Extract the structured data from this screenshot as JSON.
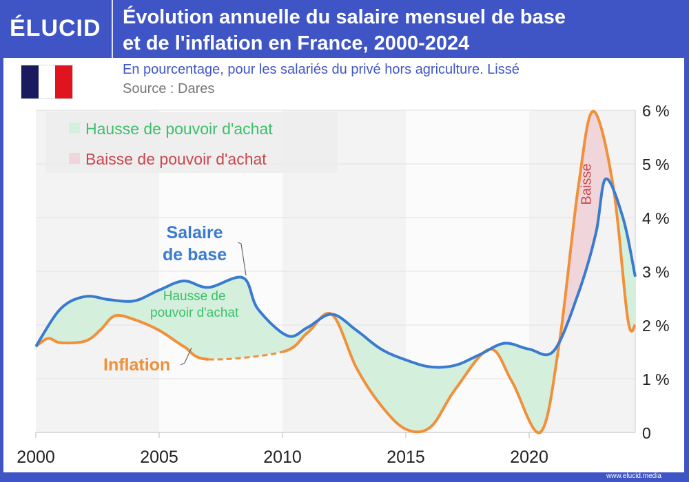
{
  "header": {
    "logo": "ÉLUCID",
    "title_line1": "Évolution annuelle du salaire mensuel de base",
    "title_line2": "et de l'inflation en France, 2000-2024",
    "subtitle": "En pourcentage, pour les salariés du privé hors agriculture. Lissé",
    "source": "Source : Dares"
  },
  "footer": {
    "url": "www.elucid.media"
  },
  "colors": {
    "brand": "#3f55c6",
    "salary": "#3a7bd0",
    "inflation": "#f0903a",
    "gain_fill": "#d5efdd",
    "loss_fill": "#f0d6da",
    "gain_text": "#3cbf6a",
    "loss_text": "#c9474f"
  },
  "chart_data": {
    "type": "line",
    "title": "Évolution annuelle du salaire mensuel de base et de l'inflation en France, 2000-2024",
    "xlim": [
      2000,
      2024.3
    ],
    "ylim": [
      0,
      6
    ],
    "x_ticks": [
      "2000",
      "2005",
      "2010",
      "2015",
      "2020"
    ],
    "y_ticks": [
      "0",
      "1 %",
      "2 %",
      "3 %",
      "4 %",
      "5 %",
      "6 %"
    ],
    "legend": [
      {
        "label": "Hausse de pouvoir d'achat",
        "kind": "gain"
      },
      {
        "label": "Baisse de pouvoir d'achat",
        "kind": "loss"
      }
    ],
    "annotations": {
      "salary": [
        "Salaire",
        "de base"
      ],
      "gain": [
        "Hausse de",
        "pouvoir d'achat"
      ],
      "inflation": "Inflation",
      "loss": "Baisse"
    },
    "series": [
      {
        "name": "Salaire de base",
        "x": [
          2000,
          2001,
          2002,
          2003,
          2004,
          2005,
          2006,
          2007,
          2008.4,
          2009,
          2010.2,
          2011,
          2012,
          2013,
          2014,
          2015,
          2016,
          2017,
          2018,
          2019,
          2020,
          2021,
          2022,
          2022.7,
          2023.1,
          2023.8,
          2024.3
        ],
        "y": [
          1.6,
          2.3,
          2.53,
          2.47,
          2.45,
          2.65,
          2.82,
          2.7,
          2.88,
          2.3,
          1.8,
          1.95,
          2.2,
          1.9,
          1.55,
          1.35,
          1.22,
          1.25,
          1.45,
          1.66,
          1.55,
          1.52,
          2.6,
          3.7,
          4.72,
          4.0,
          2.9
        ]
      },
      {
        "name": "Inflation",
        "x": [
          2000,
          2000.5,
          2001,
          2002,
          2002.6,
          2003.2,
          2004,
          2005,
          2006,
          2007,
          2010,
          2011,
          2012,
          2013,
          2014,
          2015,
          2016,
          2017,
          2018.4,
          2019.3,
          2020.45,
          2021.2,
          2022,
          2022.6,
          2023.4,
          2024,
          2024.3
        ],
        "y": [
          1.6,
          1.75,
          1.67,
          1.7,
          1.9,
          2.17,
          2.1,
          1.9,
          1.6,
          1.36,
          1.5,
          1.85,
          2.2,
          1.2,
          0.5,
          0.06,
          0.1,
          0.8,
          1.55,
          0.95,
          0.0,
          1.6,
          4.6,
          5.98,
          4.6,
          2.1,
          2.0
        ],
        "dashed_range": [
          2007,
          2010
        ]
      }
    ]
  }
}
